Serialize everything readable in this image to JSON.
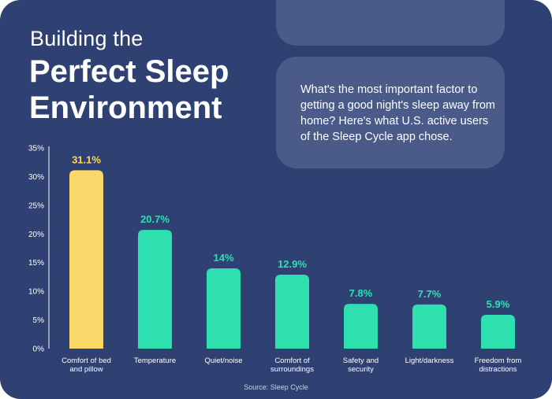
{
  "header": {
    "title_line1": "Building the",
    "title_line2": "Perfect Sleep Environment"
  },
  "description": "What's the most important factor to getting a good night's sleep away from home? Here's what U.S. active users of the Sleep Cycle app chose.",
  "source": "Source: Sleep Cycle",
  "colors": {
    "background": "#2f4173",
    "highlight_bar": "#fad96a",
    "bar": "#2ee0b0",
    "panel": "#4a5b8a"
  },
  "chart_data": {
    "type": "bar",
    "categories": [
      "Comfort of bed and pillow",
      "Temperature",
      "Quiet/noise",
      "Comfort of surroundings",
      "Safety and security",
      "Light/darkness",
      "Freedom from distractions"
    ],
    "values": [
      31.1,
      20.7,
      14,
      12.9,
      7.8,
      7.7,
      5.9
    ],
    "data_labels": [
      "31.1%",
      "20.7%",
      "14%",
      "12.9%",
      "7.8%",
      "7.7%",
      "5.9%"
    ],
    "highlight_index": 0,
    "ylim": [
      0,
      35
    ],
    "yticks": [
      "0%",
      "5%",
      "10%",
      "15%",
      "20%",
      "25%",
      "30%",
      "35%"
    ],
    "xlabel": "",
    "ylabel": "",
    "grid": false,
    "legend": "none"
  }
}
